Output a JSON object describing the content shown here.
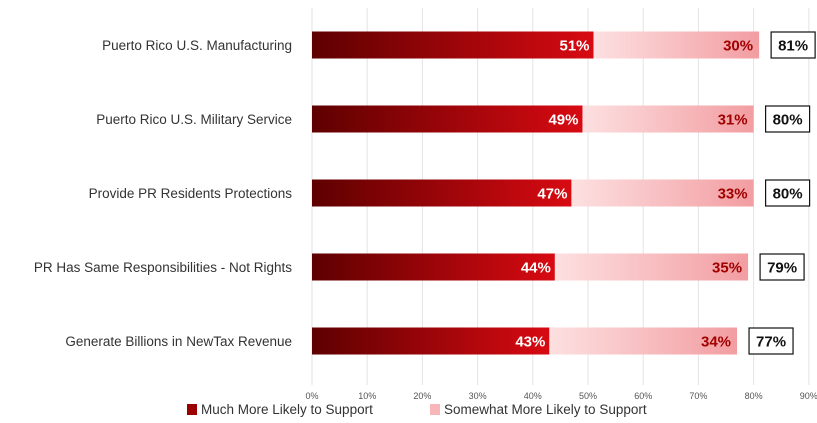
{
  "chart_data": {
    "type": "bar",
    "orientation": "horizontal",
    "stacked": true,
    "categories": [
      "Puerto Rico U.S. Manufacturing",
      "Puerto Rico U.S. Military Service",
      "Provide PR Residents Protections",
      "PR Has Same Responsibilities - Not Rights",
      "Generate Billions in NewTax Revenue"
    ],
    "series": [
      {
        "name": "Much More Likely to Support",
        "values": [
          51,
          49,
          47,
          44,
          43
        ],
        "labels": [
          "51%",
          "49%",
          "47%",
          "44%",
          "43%"
        ],
        "color": "#b30000"
      },
      {
        "name": "Somewhat More Likely to Support",
        "values": [
          30,
          31,
          33,
          35,
          34
        ],
        "labels": [
          "30%",
          "31%",
          "33%",
          "35%",
          "34%"
        ],
        "color": "#f7b6b8"
      }
    ],
    "totals": [
      "81%",
      "80%",
      "80%",
      "79%",
      "77%"
    ],
    "x_ticks": [
      "0%",
      "10%",
      "20%",
      "30%",
      "40%",
      "50%",
      "60%",
      "70%",
      "80%",
      "90%"
    ],
    "xlim": [
      0,
      90
    ],
    "grid": true,
    "legend_position": "bottom"
  }
}
